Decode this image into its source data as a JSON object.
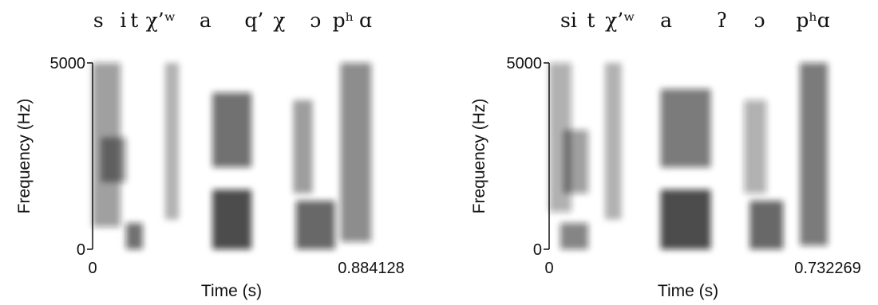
{
  "chart_data": [
    {
      "type": "heatmap",
      "title": "",
      "transcription": [
        {
          "text": "s",
          "x": 0.021
        },
        {
          "text": "i",
          "x": 0.11
        },
        {
          "text": "t",
          "x": 0.15
        },
        {
          "text": "χ’ʷ",
          "x": 0.245
        },
        {
          "text": "a",
          "x": 0.405
        },
        {
          "text": "q’",
          "x": 0.58
        },
        {
          "text": "χ",
          "x": 0.67
        },
        {
          "text": "ɔ",
          "x": 0.8
        },
        {
          "text": "pʰ",
          "x": 0.9
        },
        {
          "text": "ɑ",
          "x": 0.98
        }
      ],
      "xlabel": "Time (s)",
      "ylabel": "Frequency (Hz)",
      "xlim": [
        0,
        0.884128
      ],
      "ylim": [
        0,
        5000
      ],
      "x_tick_labels": [
        "0",
        "0.884128"
      ],
      "y_tick_labels": [
        "0",
        "5000"
      ],
      "energy_regions": [
        {
          "t": [
            0.0,
            0.1
          ],
          "f": [
            600,
            5000
          ],
          "level": 0.55
        },
        {
          "t": [
            0.03,
            0.12
          ],
          "f": [
            1800,
            3000
          ],
          "level": 0.6
        },
        {
          "t": [
            0.12,
            0.18
          ],
          "f": [
            0,
            700
          ],
          "level": 0.8
        },
        {
          "t": [
            0.26,
            0.31
          ],
          "f": [
            800,
            5000
          ],
          "level": 0.4
        },
        {
          "t": [
            0.43,
            0.57
          ],
          "f": [
            0,
            1600
          ],
          "level": 1.0
        },
        {
          "t": [
            0.43,
            0.57
          ],
          "f": [
            2200,
            4200
          ],
          "level": 0.8
        },
        {
          "t": [
            0.72,
            0.79
          ],
          "f": [
            1500,
            4000
          ],
          "level": 0.5
        },
        {
          "t": [
            0.73,
            0.87
          ],
          "f": [
            0,
            1300
          ],
          "level": 0.85
        },
        {
          "t": [
            0.89,
            1.0
          ],
          "f": [
            200,
            5000
          ],
          "level": 0.65
        }
      ]
    },
    {
      "type": "heatmap",
      "title": "",
      "transcription": [
        {
          "text": "si",
          "x": 0.07
        },
        {
          "text": "t",
          "x": 0.15
        },
        {
          "text": "χ’ʷ",
          "x": 0.255
        },
        {
          "text": "a",
          "x": 0.42
        },
        {
          "text": "ʔ",
          "x": 0.62
        },
        {
          "text": "ɔ",
          "x": 0.755
        },
        {
          "text": "pʰ",
          "x": 0.925
        },
        {
          "text": "ɑ",
          "x": 0.985
        }
      ],
      "xlabel": "Time (s)",
      "ylabel": "Frequency (Hz)",
      "xlim": [
        0,
        0.732269
      ],
      "ylim": [
        0,
        5000
      ],
      "x_tick_labels": [
        "0",
        "0.732269"
      ],
      "y_tick_labels": [
        "0",
        "5000"
      ],
      "energy_regions": [
        {
          "t": [
            0.0,
            0.08
          ],
          "f": [
            1000,
            5000
          ],
          "level": 0.45
        },
        {
          "t": [
            0.05,
            0.14
          ],
          "f": [
            1500,
            3200
          ],
          "level": 0.55
        },
        {
          "t": [
            0.04,
            0.14
          ],
          "f": [
            0,
            700
          ],
          "level": 0.7
        },
        {
          "t": [
            0.2,
            0.26
          ],
          "f": [
            800,
            5000
          ],
          "level": 0.4
        },
        {
          "t": [
            0.4,
            0.58
          ],
          "f": [
            0,
            1600
          ],
          "level": 1.0
        },
        {
          "t": [
            0.4,
            0.58
          ],
          "f": [
            2200,
            4300
          ],
          "level": 0.75
        },
        {
          "t": [
            0.7,
            0.78
          ],
          "f": [
            1500,
            4000
          ],
          "level": 0.45
        },
        {
          "t": [
            0.72,
            0.84
          ],
          "f": [
            0,
            1300
          ],
          "level": 0.85
        },
        {
          "t": [
            0.9,
            1.0
          ],
          "f": [
            100,
            5000
          ],
          "level": 0.75
        }
      ]
    }
  ]
}
